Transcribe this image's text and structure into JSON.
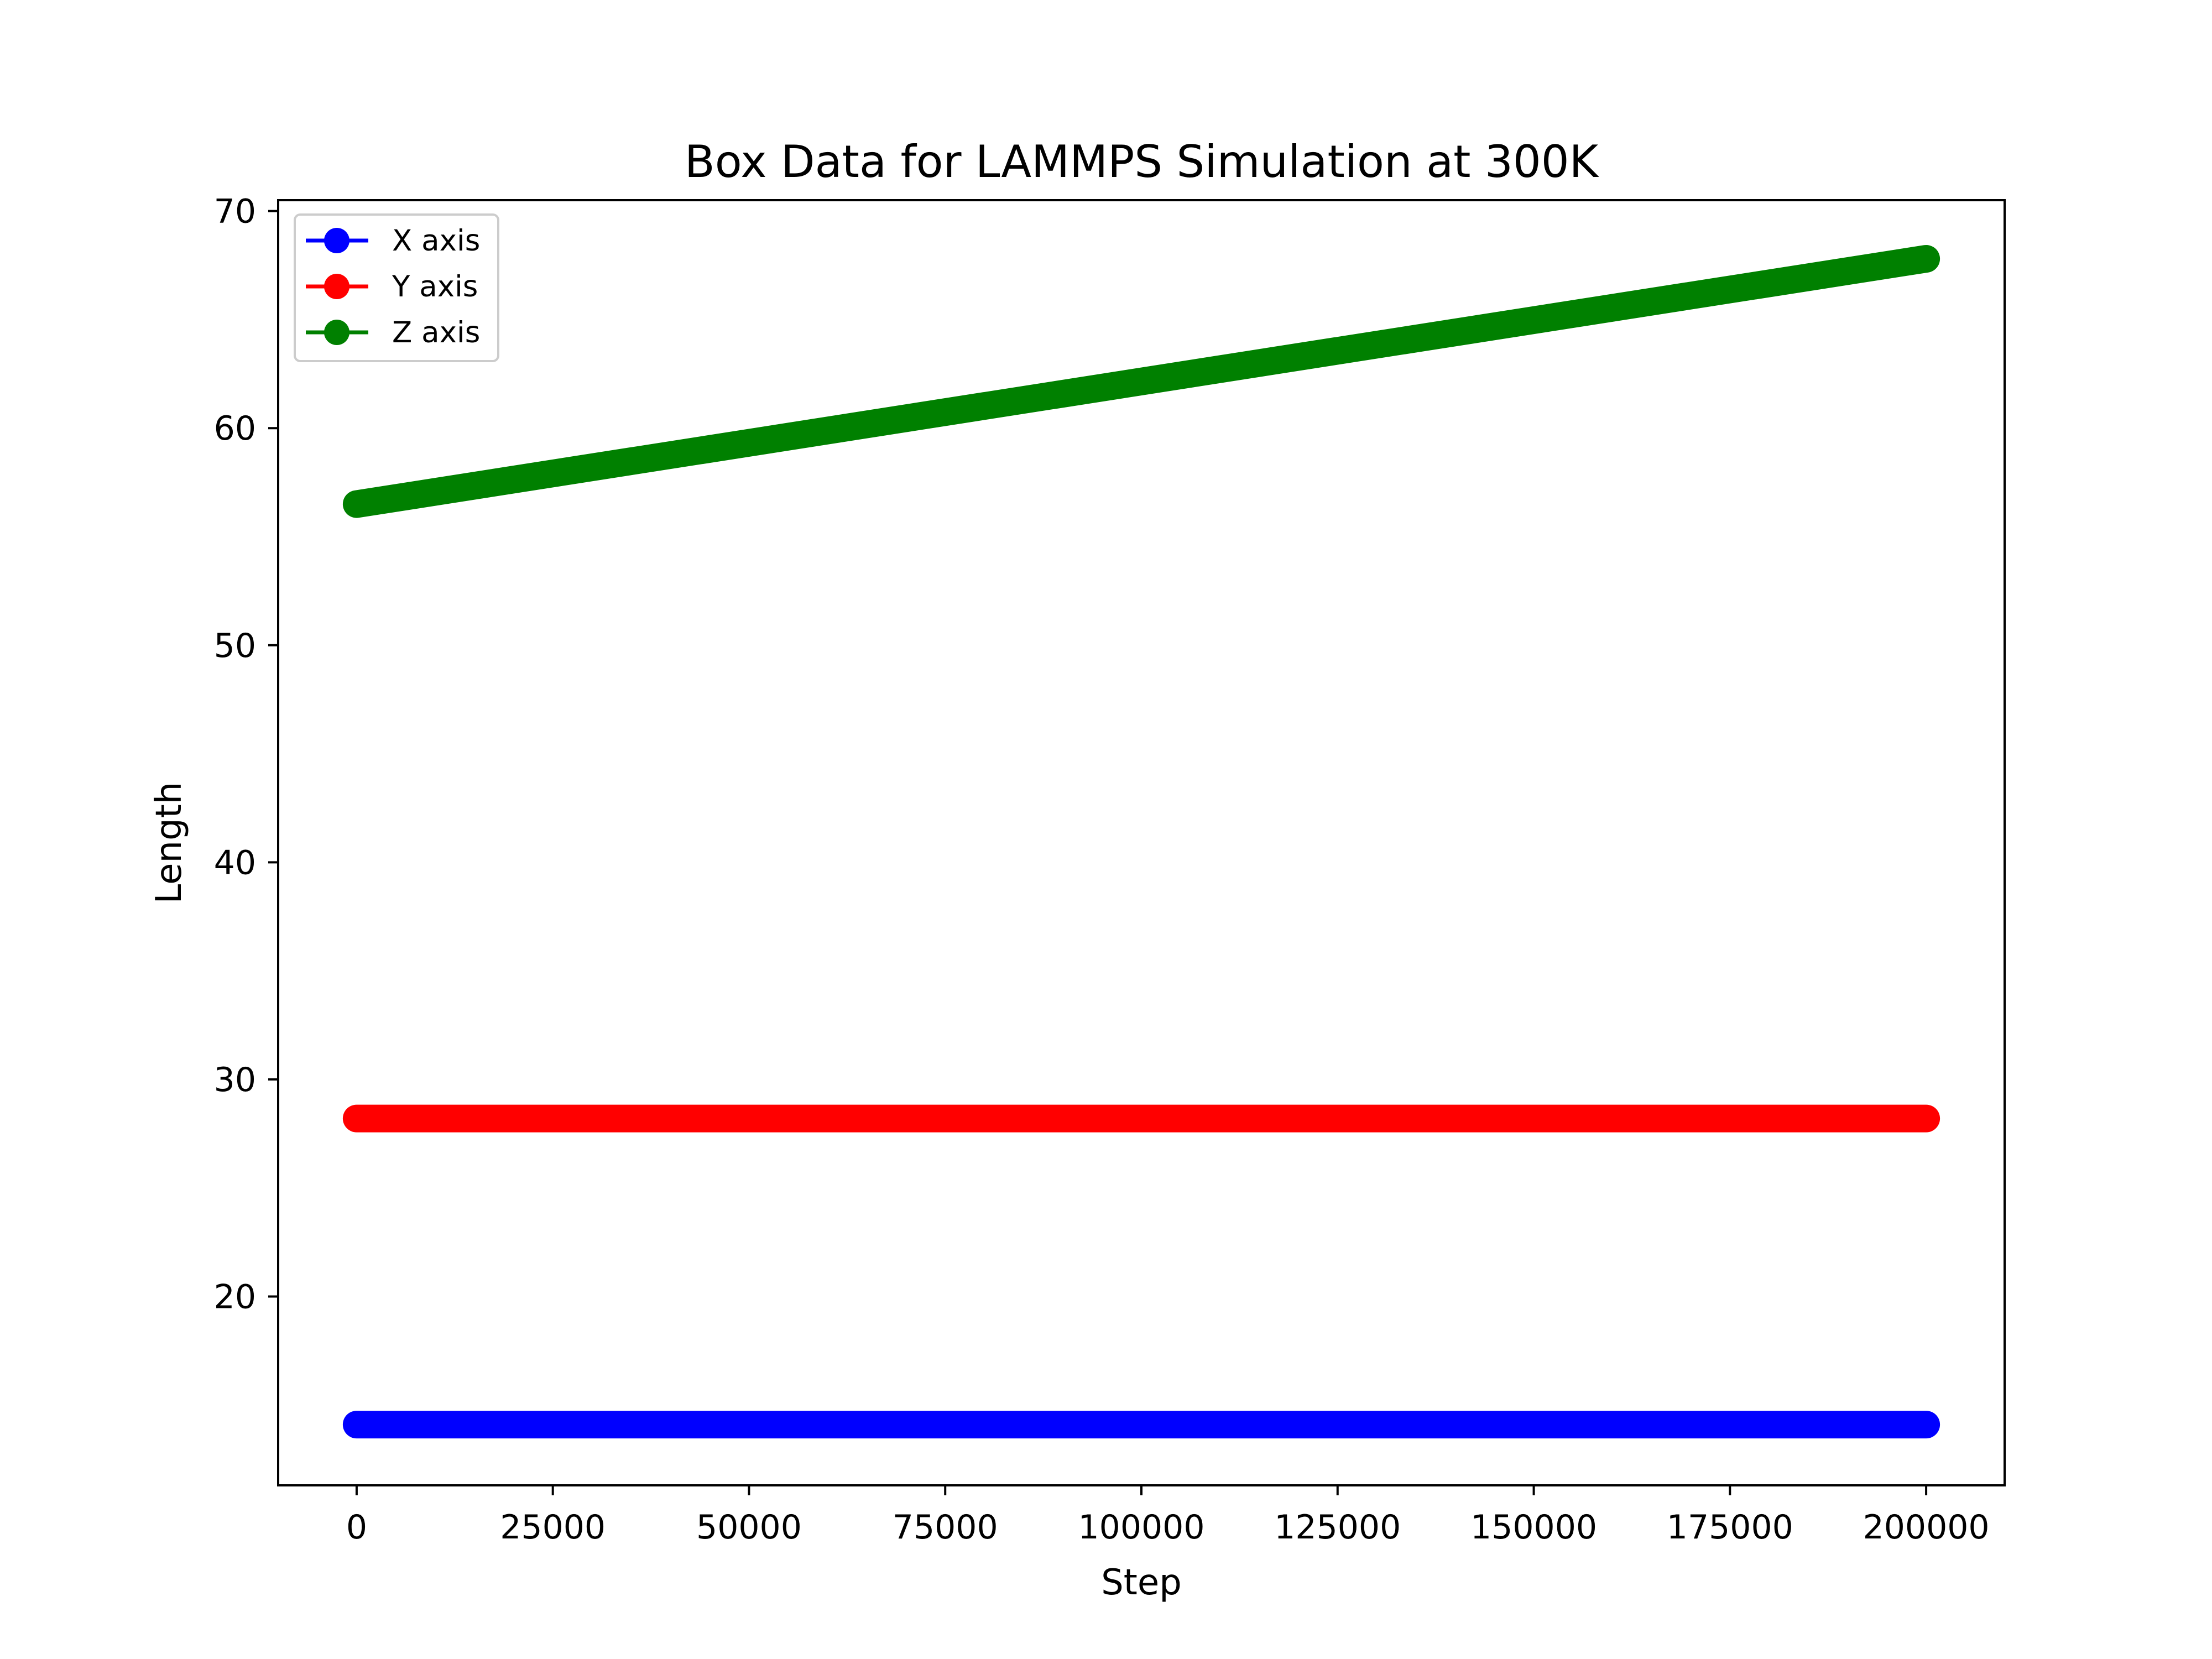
{
  "chart_data": {
    "type": "line",
    "title": "Box Data for LAMMPS Simulation at 300K",
    "xlabel": "Step",
    "ylabel": "Length",
    "xlim": [
      -10000,
      210000
    ],
    "ylim": [
      11.3,
      70.5
    ],
    "xticks": [
      0,
      25000,
      50000,
      75000,
      100000,
      125000,
      150000,
      175000,
      200000
    ],
    "xtick_labels": [
      "0",
      "25000",
      "50000",
      "75000",
      "100000",
      "125000",
      "150000",
      "175000",
      "200000"
    ],
    "yticks": [
      20,
      30,
      40,
      50,
      60,
      70
    ],
    "ytick_labels": [
      "20",
      "30",
      "40",
      "50",
      "60",
      "70"
    ],
    "grid": false,
    "legend_position": "top-left",
    "series": [
      {
        "name": "X axis",
        "color": "#0000ff",
        "x": [
          0,
          200000
        ],
        "y": [
          14.1,
          14.1
        ]
      },
      {
        "name": "Y axis",
        "color": "#ff0000",
        "x": [
          0,
          200000
        ],
        "y": [
          28.2,
          28.2
        ]
      },
      {
        "name": "Z axis",
        "color": "#008000",
        "x": [
          0,
          200000
        ],
        "y": [
          56.5,
          67.8
        ]
      }
    ]
  }
}
